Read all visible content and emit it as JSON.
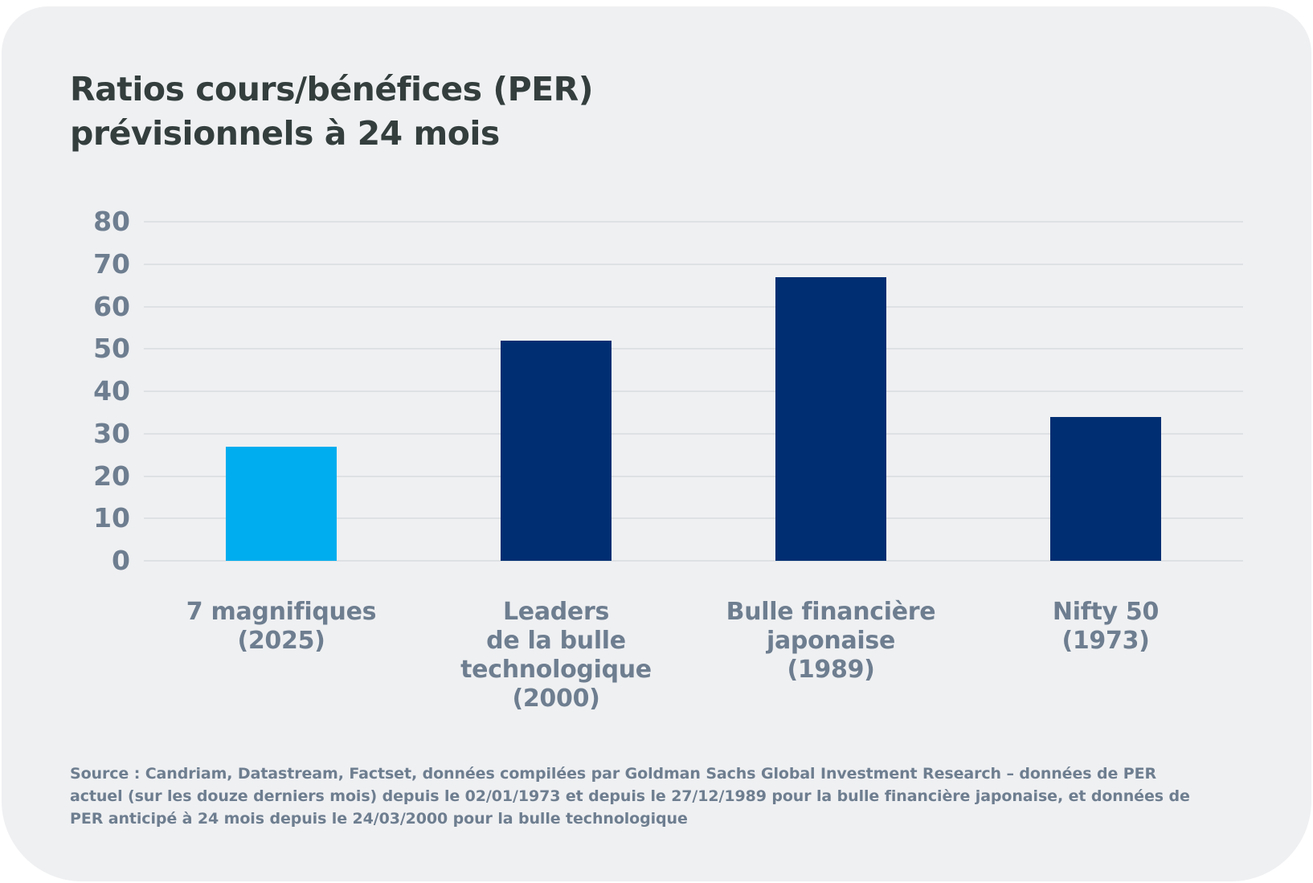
{
  "colors": {
    "card_background": "#eff0f2",
    "title_text": "#333e3d",
    "axis_text": "#6e7e90",
    "gridline": "#dee1e4",
    "highlight_bar": "#00adee",
    "default_bar": "#002e72"
  },
  "chart_data": {
    "type": "bar",
    "title": "Ratios cours/bénéfices (PER)\nprévisionnels à 24 mois",
    "categories": [
      "7 magnifiques\n(2025)",
      "Leaders\nde la bulle\ntechnologique\n(2000)",
      "Bulle financière\njaponaise\n(1989)",
      "Nifty 50\n(1973)"
    ],
    "values": [
      27,
      52,
      67,
      34
    ],
    "bar_colors": [
      "#00adee",
      "#002e72",
      "#002e72",
      "#002e72"
    ],
    "xlabel": "",
    "ylabel": "",
    "ylim": [
      0,
      80
    ],
    "yticks": [
      0,
      10,
      20,
      30,
      40,
      50,
      60,
      70,
      80
    ],
    "grid": true,
    "legend": false,
    "source": "Source : Candriam, Datastream, Factset, données compilées par Goldman Sachs Global Investment Research – données de PER\nactuel (sur les douze derniers mois) depuis le 02/01/1973 et depuis le 27/12/1989 pour la bulle financière japonaise, et données de\nPER anticipé à 24 mois depuis le 24/03/2000 pour la bulle technologique"
  }
}
